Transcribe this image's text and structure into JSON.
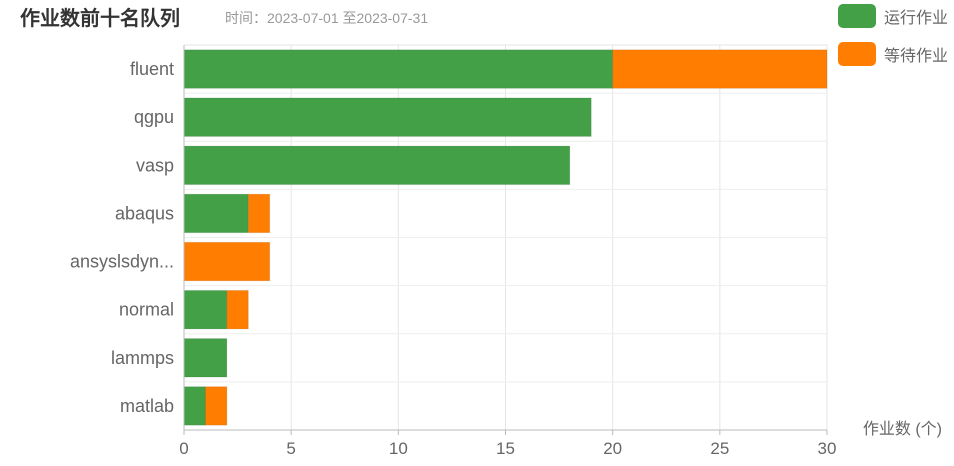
{
  "chart_data": {
    "type": "bar",
    "orientation": "horizontal",
    "stacked": true,
    "title": "作业数前十名队列",
    "subtitle": "时间：2023-07-01 至2023-07-31",
    "xlabel": "作业数 (个)",
    "ylabel": "",
    "xlim": [
      0,
      30
    ],
    "xticks": [
      "0",
      "5",
      "10",
      "15",
      "20",
      "25",
      "30"
    ],
    "grid": true,
    "legend_position": "top-right",
    "categories": [
      "fluent",
      "qgpu",
      "vasp",
      "abaqus",
      "ansyslsdyn...",
      "normal",
      "lammps",
      "matlab"
    ],
    "series": [
      {
        "name": "运行作业",
        "color": "#43a047",
        "values": [
          20,
          19,
          18,
          3,
          0,
          2,
          2,
          1
        ]
      },
      {
        "name": "等待作业",
        "color": "#ff7d00",
        "values": [
          10,
          0,
          0,
          1,
          4,
          1,
          0,
          1
        ]
      }
    ]
  }
}
